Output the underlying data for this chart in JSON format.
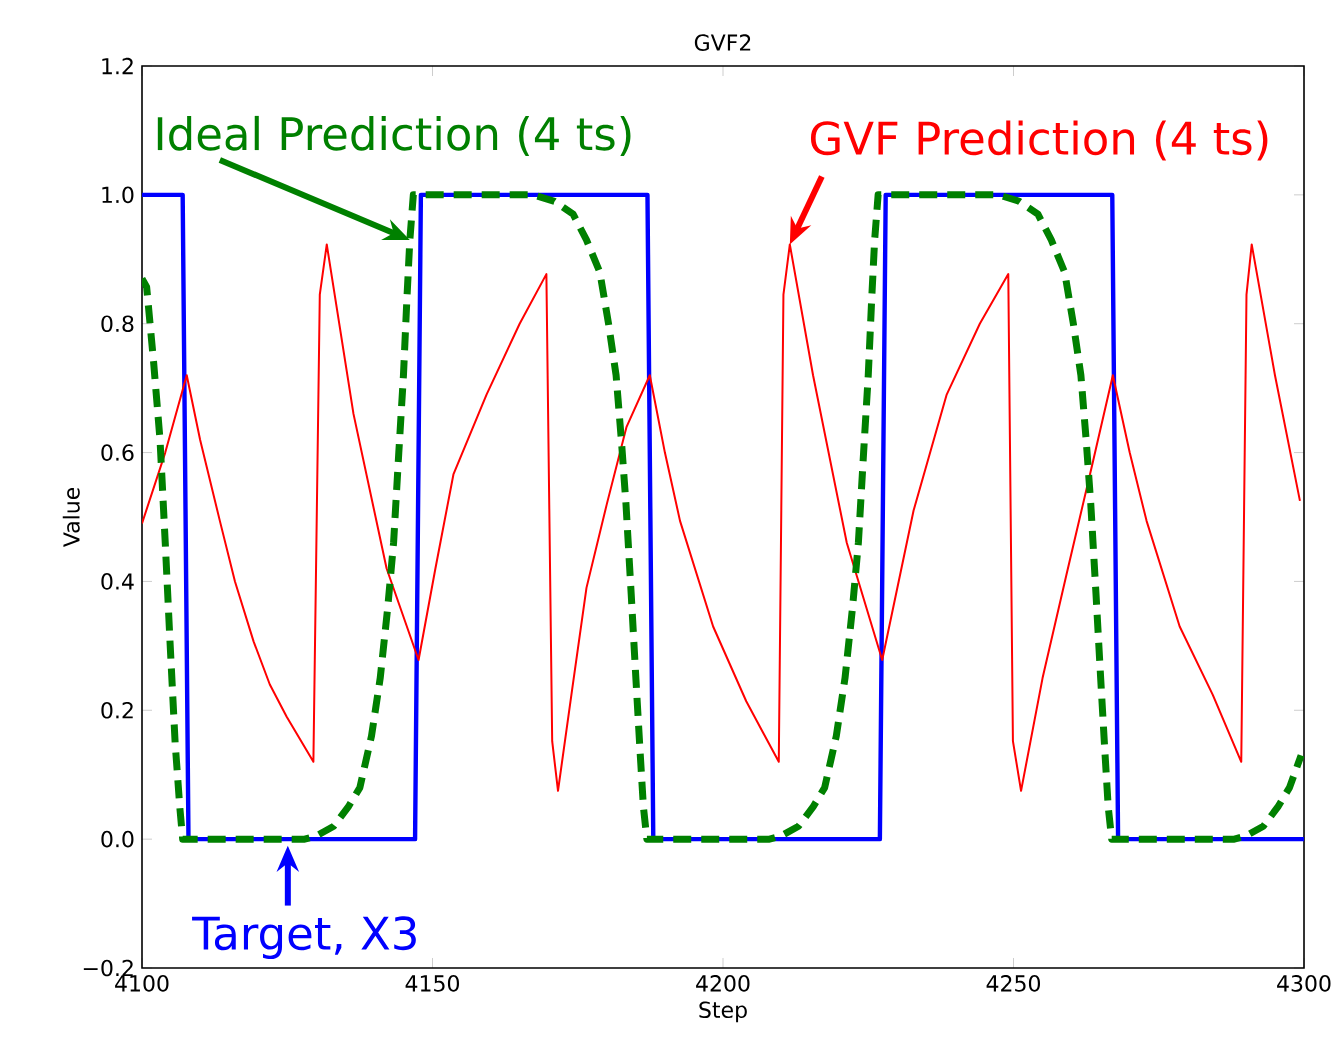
{
  "chart_data": {
    "type": "line",
    "title": "GVF2",
    "xlabel": "Step",
    "ylabel": "Value",
    "xlim": [
      4100,
      4300
    ],
    "xticks": [
      4100,
      4150,
      4200,
      4250,
      4300
    ],
    "ylim": [
      -0.2,
      1.2
    ],
    "yticks": [
      {
        "value": -0.2,
        "label": "−0.2"
      },
      {
        "value": 0,
        "label": "0.0"
      },
      {
        "value": 0.2,
        "label": "0.2"
      },
      {
        "value": 0.4,
        "label": "0.4"
      },
      {
        "value": 0.6,
        "label": "0.6"
      },
      {
        "value": 0.8,
        "label": "0.8"
      },
      {
        "value": 1.0,
        "label": "1.0"
      },
      {
        "value": 1.2,
        "label": "1.2"
      }
    ],
    "series": [
      {
        "color": "#008000",
        "line_style": "dashed",
        "x": [
          4100,
          4100.8,
          4102,
          4103.1,
          4104,
          4104.8,
          4105.7,
          4106.5,
          4107,
          4128,
          4130,
          4133,
          4135.5,
          4137.5,
          4139.5,
          4141,
          4142.3,
          4143.3,
          4144.2,
          4145,
          4145.6,
          4146.1,
          4146.7,
          4167.4,
          4171,
          4174.2,
          4176.5,
          4178.8,
          4180.3,
          4181.6,
          4182.5,
          4183.3,
          4184.2,
          4185,
          4185.7,
          4186.3,
          4186.9,
          4208,
          4210,
          4213,
          4215.5,
          4217.5,
          4219.5,
          4221,
          4222.3,
          4223.3,
          4224.2,
          4225,
          4225.6,
          4226.1,
          4226.7,
          4247.4,
          4251,
          4254.2,
          4256.5,
          4258.8,
          4260.3,
          4261.6,
          4262.5,
          4263.3,
          4264.2,
          4265,
          4265.7,
          4266.3,
          4266.9,
          4288,
          4290,
          4293,
          4295.5,
          4297.5,
          4299.5
        ],
        "values": [
          0.87,
          0.857,
          0.74,
          0.62,
          0.46,
          0.31,
          0.15,
          0.05,
          0,
          0,
          0.005,
          0.02,
          0.05,
          0.08,
          0.16,
          0.25,
          0.36,
          0.46,
          0.6,
          0.72,
          0.84,
          0.93,
          1,
          1,
          0.99,
          0.97,
          0.93,
          0.88,
          0.8,
          0.72,
          0.62,
          0.52,
          0.38,
          0.25,
          0.14,
          0.05,
          0,
          0,
          0.005,
          0.02,
          0.05,
          0.08,
          0.16,
          0.25,
          0.36,
          0.46,
          0.6,
          0.72,
          0.84,
          0.93,
          1,
          1,
          0.99,
          0.97,
          0.93,
          0.88,
          0.8,
          0.72,
          0.62,
          0.52,
          0.38,
          0.25,
          0.14,
          0.05,
          0,
          0,
          0.005,
          0.02,
          0.05,
          0.08,
          0.13
        ]
      },
      {
        "color": "#ff0000",
        "line_style": "solid",
        "x": [
          4100,
          4104,
          4107.7,
          4110,
          4113.4,
          4116,
          4119.2,
          4122,
          4124.9,
          4129.5,
          4130.6,
          4131.8,
          4136.4,
          4142.1,
          4147.6,
          4150.5,
          4153.6,
          4159.3,
          4165,
          4169.6,
          4170.6,
          4171.6,
          4174,
          4176.5,
          4180,
          4183.4,
          4187.4,
          4190,
          4192.6,
          4198.3,
          4204,
          4209.6,
          4210.4,
          4211.5,
          4215.5,
          4221.3,
          4227.4,
          4232.8,
          4238.5,
          4244.2,
          4249.1,
          4249.9,
          4251.3,
          4255,
          4259.1,
          4263.7,
          4267.1,
          4270,
          4272.9,
          4278.6,
          4284.3,
          4289.2,
          4290.1,
          4291,
          4295,
          4299.3
        ],
        "values": [
          0.49,
          0.6,
          0.72,
          0.62,
          0.494,
          0.4,
          0.307,
          0.24,
          0.19,
          0.12,
          0.845,
          0.923,
          0.66,
          0.42,
          0.278,
          0.42,
          0.566,
          0.69,
          0.8,
          0.877,
          0.152,
          0.075,
          0.23,
          0.39,
          0.52,
          0.64,
          0.72,
          0.6,
          0.494,
          0.33,
          0.214,
          0.12,
          0.845,
          0.923,
          0.72,
          0.46,
          0.278,
          0.51,
          0.69,
          0.8,
          0.877,
          0.152,
          0.075,
          0.25,
          0.41,
          0.587,
          0.72,
          0.6,
          0.494,
          0.33,
          0.224,
          0.12,
          0.845,
          0.923,
          0.72,
          0.525
        ]
      },
      {
        "color": "#0000ff",
        "line_style": "solid",
        "x": [
          4100,
          4107,
          4108,
          4147,
          4148,
          4187,
          4188,
          4227,
          4228,
          4267,
          4268,
          4300
        ],
        "values": [
          1,
          1,
          0,
          0,
          1,
          1,
          0,
          0,
          1,
          1,
          0,
          0
        ]
      }
    ],
    "annotations": [
      {
        "text": "Ideal Prediction (4 ts)",
        "x": 4146.1,
        "y": 0.93
      },
      {
        "text": "GVF Prediction (4 ts)",
        "x": 4211.5,
        "y": 0.923
      },
      {
        "text": "Target, X3",
        "x": 4125.1,
        "y": -0.01
      }
    ]
  }
}
